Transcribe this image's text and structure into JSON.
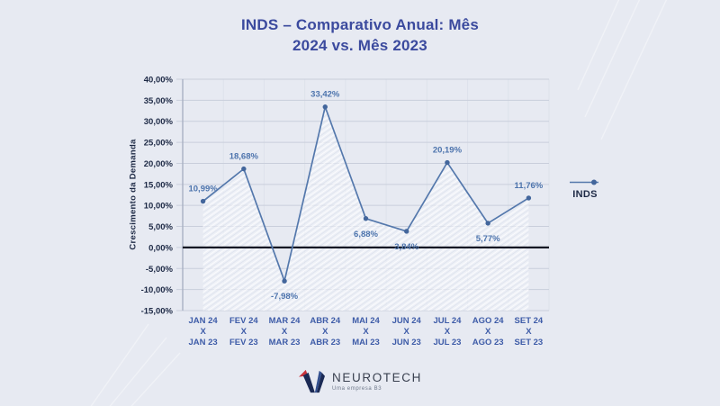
{
  "title": {
    "line1": "INDS – Comparativo Anual: Mês",
    "line2": "2024 vs. Mês 2023"
  },
  "legend": {
    "label": "INDS"
  },
  "footer": {
    "brand": "NEUROTECH",
    "tagline": "Uma empresa B3"
  },
  "colors": {
    "background": "#e7eaf2",
    "title": "#3b4a9e",
    "line": "#5478ac",
    "point": "#43669c",
    "value_label": "#4d74ad",
    "x_label": "#3e5ca8",
    "y_label": "#1d2945",
    "grid": "#c9cedb",
    "grid_vertical": "#dde2eb",
    "axis": "#a9b1c3",
    "zero_line": "#141824",
    "logo_navy": "#1b2a55",
    "logo_blue": "#33508f",
    "logo_red": "#c8333c"
  },
  "chart_data": {
    "type": "line",
    "title": "INDS – Comparativo Anual: Mês 2024 vs. Mês 2023",
    "xlabel": "",
    "ylabel": "Crescimento da Demanda",
    "categories": [
      [
        "JAN 24",
        "X",
        "JAN 23"
      ],
      [
        "FEV 24",
        "X",
        "FEV 23"
      ],
      [
        "MAR 24",
        "X",
        "MAR 23"
      ],
      [
        "ABR 24",
        "X",
        "ABR 23"
      ],
      [
        "MAI 24",
        "X",
        "MAI 23"
      ],
      [
        "JUN 24",
        "X",
        "JUN 23"
      ],
      [
        "JUL 24",
        "X",
        "JUL 23"
      ],
      [
        "AGO 24",
        "X",
        "AGO 23"
      ],
      [
        "SET 24",
        "X",
        "SET 23"
      ]
    ],
    "series": [
      {
        "name": "INDS",
        "values": [
          10.99,
          18.68,
          -7.98,
          33.42,
          6.88,
          3.84,
          20.19,
          5.77,
          11.76
        ]
      }
    ],
    "value_labels": [
      "10,99%",
      "18,68%",
      "-7,98%",
      "33,42%",
      "6,88%",
      "3,84%",
      "20,19%",
      "5,77%",
      "11,76%"
    ],
    "label_position": [
      "above",
      "above",
      "below",
      "above",
      "below",
      "below",
      "above",
      "below",
      "above"
    ],
    "ylim": [
      -15,
      40
    ],
    "ytick_step": 5,
    "ytick_labels": [
      "40,00%",
      "35,00%",
      "30,00%",
      "25,00%",
      "20,00%",
      "15,00%",
      "10,00%",
      "5,00%",
      "0,00%",
      "-5,00%",
      "-10,00%",
      "-15,00%"
    ],
    "grid": true,
    "area_fill": "hatched",
    "legend_position": "right"
  }
}
